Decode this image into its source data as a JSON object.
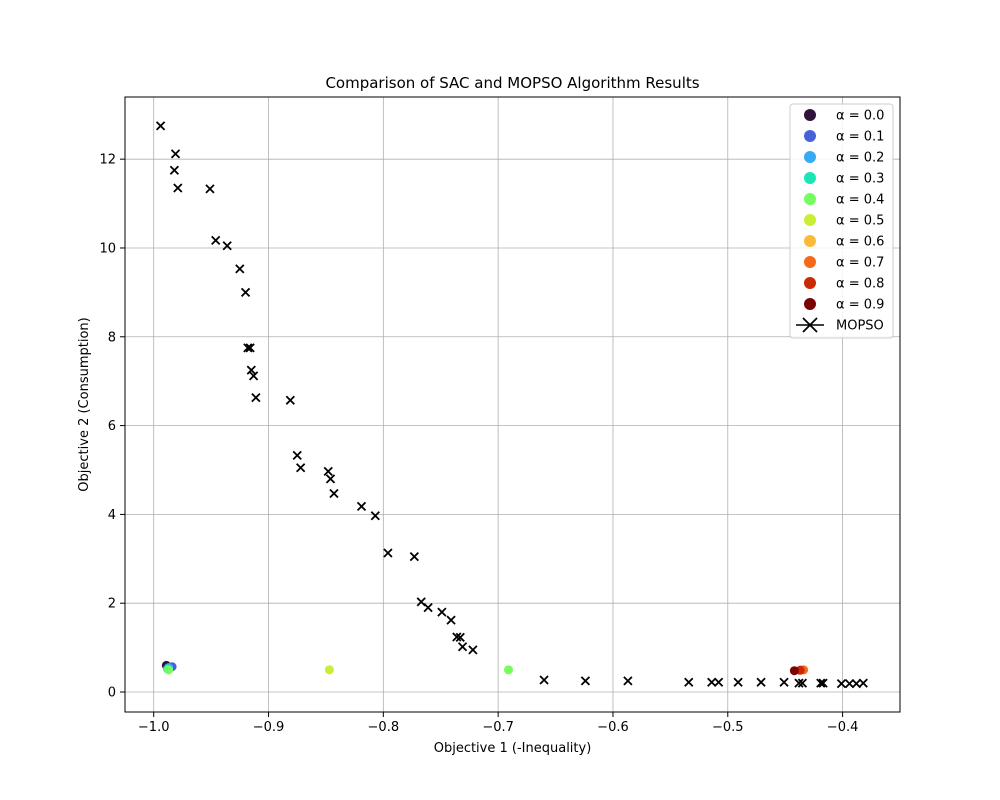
{
  "chart_data": {
    "type": "scatter",
    "title": "Comparison of SAC and MOPSO Algorithm Results",
    "xlabel": "Objective 1 (-Inequality)",
    "ylabel": "Objective 2 (Consumption)",
    "xlim": [
      -1.025,
      -0.35
    ],
    "ylim": [
      -0.45,
      13.4
    ],
    "xticks": [
      -1.0,
      -0.9,
      -0.8,
      -0.7,
      -0.6,
      -0.5,
      -0.4
    ],
    "xtick_labels": [
      "−1.0",
      "−0.9",
      "−0.8",
      "−0.7",
      "−0.6",
      "−0.5",
      "−0.4"
    ],
    "yticks": [
      0,
      2,
      4,
      6,
      8,
      10,
      12
    ],
    "ytick_labels": [
      "0",
      "2",
      "4",
      "6",
      "8",
      "10",
      "12"
    ],
    "grid": true,
    "legend_position": "top-right",
    "series": [
      {
        "name": "α = 0.0",
        "color": "#30123b",
        "marker": "circle",
        "x": [
          -0.989
        ],
        "y": [
          0.6
        ]
      },
      {
        "name": "α = 0.1",
        "color": "#4662d8",
        "marker": "circle",
        "x": [
          -0.984
        ],
        "y": [
          0.57
        ]
      },
      {
        "name": "α = 0.2",
        "color": "#35abf8",
        "marker": "circle",
        "x": [
          -0.987
        ],
        "y": [
          0.55
        ]
      },
      {
        "name": "α = 0.3",
        "color": "#1be5b5",
        "marker": "circle",
        "x": [
          -0.988
        ],
        "y": [
          0.52
        ]
      },
      {
        "name": "α = 0.4",
        "color": "#74fe5d",
        "marker": "circle",
        "x": [
          -0.987,
          -0.691
        ],
        "y": [
          0.5,
          0.5
        ]
      },
      {
        "name": "α = 0.5",
        "color": "#c9ef34",
        "marker": "circle",
        "x": [
          -0.847
        ],
        "y": [
          0.5
        ]
      },
      {
        "name": "α = 0.6",
        "color": "#fbb938",
        "marker": "circle",
        "x": [
          -0.436
        ],
        "y": [
          0.5
        ]
      },
      {
        "name": "α = 0.7",
        "color": "#f56918",
        "marker": "circle",
        "x": [
          -0.434
        ],
        "y": [
          0.5
        ]
      },
      {
        "name": "α = 0.8",
        "color": "#c92903",
        "marker": "circle",
        "x": [
          -0.437
        ],
        "y": [
          0.49
        ]
      },
      {
        "name": "α = 0.9",
        "color": "#7a0403",
        "marker": "circle",
        "x": [
          -0.442
        ],
        "y": [
          0.48
        ]
      },
      {
        "name": "MOPSO",
        "color": "#000000",
        "marker": "x",
        "x": [
          -0.994,
          -0.981,
          -0.982,
          -0.979,
          -0.951,
          -0.946,
          -0.936,
          -0.925,
          -0.92,
          -0.918,
          -0.916,
          -0.915,
          -0.913,
          -0.911,
          -0.881,
          -0.875,
          -0.872,
          -0.848,
          -0.846,
          -0.843,
          -0.819,
          -0.807,
          -0.796,
          -0.773,
          -0.767,
          -0.761,
          -0.749,
          -0.741,
          -0.736,
          -0.733,
          -0.731,
          -0.722,
          -0.66,
          -0.624,
          -0.587,
          -0.534,
          -0.514,
          -0.508,
          -0.491,
          -0.471,
          -0.451,
          -0.438,
          -0.435,
          -0.419,
          -0.417,
          -0.401,
          -0.394,
          -0.388,
          -0.382
        ],
        "y": [
          12.75,
          12.12,
          11.75,
          11.35,
          11.33,
          10.17,
          10.05,
          9.53,
          9.0,
          7.75,
          7.75,
          7.25,
          7.12,
          6.63,
          6.57,
          5.33,
          5.05,
          4.97,
          4.8,
          4.47,
          4.18,
          3.97,
          3.13,
          3.05,
          2.03,
          1.9,
          1.8,
          1.62,
          1.24,
          1.23,
          1.02,
          0.95,
          0.27,
          0.25,
          0.25,
          0.22,
          0.22,
          0.22,
          0.22,
          0.22,
          0.22,
          0.2,
          0.2,
          0.2,
          0.2,
          0.19,
          0.19,
          0.19,
          0.2
        ]
      }
    ]
  }
}
